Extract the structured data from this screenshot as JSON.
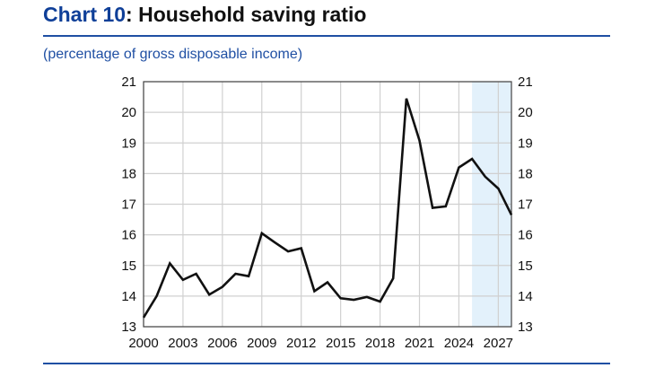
{
  "header": {
    "title_number": "Chart 10",
    "title_text": ": Household saving ratio"
  },
  "subtitle": "(percentage of gross disposable income)",
  "colors": {
    "title_blue": "#0f3f98",
    "line": "#111111",
    "projection_shade": "#e3f1fb",
    "grid": "#d0d0d0"
  },
  "chart_data": {
    "type": "line",
    "title": "Household saving ratio",
    "ylabel": "(percentage of gross disposable income)",
    "xlim": [
      2000,
      2028
    ],
    "ylim": [
      13,
      21
    ],
    "x_ticks": [
      "2000",
      "2003",
      "2006",
      "2009",
      "2012",
      "2015",
      "2018",
      "2021",
      "2024",
      "2027"
    ],
    "y_ticks": [
      "13",
      "14",
      "15",
      "16",
      "17",
      "18",
      "19",
      "20",
      "21"
    ],
    "grid": true,
    "y_axis": "both sides",
    "shaded_region": {
      "from": 2025,
      "to": 2028
    },
    "x": [
      2000,
      2001,
      2002,
      2003,
      2004,
      2005,
      2006,
      2007,
      2008,
      2009,
      2010,
      2011,
      2012,
      2013,
      2014,
      2015,
      2016,
      2017,
      2018,
      2019,
      2020,
      2021,
      2022,
      2023,
      2024,
      2025,
      2026,
      2027,
      2028
    ],
    "values": [
      13.3,
      14.0,
      15.07,
      14.53,
      14.73,
      14.05,
      14.3,
      14.73,
      14.65,
      16.05,
      15.75,
      15.46,
      15.56,
      14.16,
      14.45,
      13.93,
      13.88,
      13.97,
      13.82,
      14.58,
      20.45,
      19.08,
      16.88,
      16.93,
      18.2,
      18.48,
      17.9,
      17.51,
      16.65
    ]
  }
}
